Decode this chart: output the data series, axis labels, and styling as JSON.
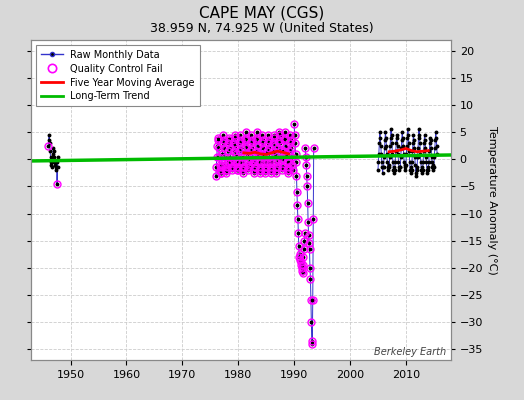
{
  "title": "CAPE MAY (CGS)",
  "subtitle": "38.959 N, 74.925 W (United States)",
  "ylabel": "Temperature Anomaly (°C)",
  "credit": "Berkeley Earth",
  "ylim": [
    -37,
    22
  ],
  "xlim": [
    1943,
    2018
  ],
  "yticks": [
    -35,
    -30,
    -25,
    -20,
    -15,
    -10,
    -5,
    0,
    5,
    10,
    15,
    20
  ],
  "xticks": [
    1950,
    1960,
    1970,
    1980,
    1990,
    2000,
    2010
  ],
  "fig_bg_color": "#d8d8d8",
  "plot_bg_color": "#ffffff",
  "raw_color": "#3333cc",
  "raw_dot_color": "#000000",
  "qc_color": "#ff00ff",
  "ma_color": "#ff0000",
  "trend_color": "#00bb00",
  "grid_color": "#cccccc",
  "title_fontsize": 11,
  "subtitle_fontsize": 9,
  "tick_fontsize": 8,
  "ylabel_fontsize": 8,
  "trend_x": [
    1943,
    2018
  ],
  "trend_y": [
    -0.3,
    0.8
  ],
  "seg1_years": [
    1946.0,
    1946.08,
    1946.17,
    1946.25,
    1946.33,
    1946.42,
    1946.5,
    1946.58,
    1946.67,
    1946.75,
    1946.83,
    1946.92,
    1947.0,
    1947.08,
    1947.17,
    1947.25,
    1947.33,
    1947.42,
    1947.5,
    1947.58,
    1947.67,
    1947.75
  ],
  "seg1_vals": [
    2.5,
    3.5,
    4.5,
    3.0,
    1.5,
    0.5,
    -0.5,
    -1.0,
    -1.5,
    -0.5,
    1.0,
    2.0,
    1.5,
    0.5,
    -0.5,
    -1.0,
    -2.0,
    -1.5,
    -0.5,
    -4.5,
    -1.5,
    0.5
  ],
  "seg1_qc_idx": [
    0,
    19
  ],
  "seg2_years": [
    1976.0,
    1976.08,
    1976.17,
    1976.25,
    1976.33,
    1976.42,
    1976.5,
    1976.58,
    1976.67,
    1976.75,
    1976.83,
    1976.92,
    1977.0,
    1977.08,
    1977.17,
    1977.25,
    1977.33,
    1977.42,
    1977.5,
    1977.58,
    1977.67,
    1977.75,
    1977.83,
    1977.92,
    1978.0,
    1978.08,
    1978.17,
    1978.25,
    1978.33,
    1978.42,
    1978.5,
    1978.58,
    1978.67,
    1978.75,
    1978.83,
    1978.92,
    1979.0,
    1979.08,
    1979.17,
    1979.25,
    1979.33,
    1979.42,
    1979.5,
    1979.58,
    1979.67,
    1979.75,
    1979.83,
    1979.92,
    1980.0,
    1980.08,
    1980.17,
    1980.25,
    1980.33,
    1980.42,
    1980.5,
    1980.58,
    1980.67,
    1980.75,
    1980.83,
    1980.92,
    1981.0,
    1981.08,
    1981.17,
    1981.25,
    1981.33,
    1981.42,
    1981.5,
    1981.58,
    1981.67,
    1981.75,
    1981.83,
    1981.92,
    1982.0,
    1982.08,
    1982.17,
    1982.25,
    1982.33,
    1982.42,
    1982.5,
    1982.58,
    1982.67,
    1982.75,
    1982.83,
    1982.92,
    1983.0,
    1983.08,
    1983.17,
    1983.25,
    1983.33,
    1983.42,
    1983.5,
    1983.58,
    1983.67,
    1983.75,
    1983.83,
    1983.92,
    1984.0,
    1984.08,
    1984.17,
    1984.25,
    1984.33,
    1984.42,
    1984.5,
    1984.58,
    1984.67,
    1984.75,
    1984.83,
    1984.92,
    1985.0,
    1985.08,
    1985.17,
    1985.25,
    1985.33,
    1985.42,
    1985.5,
    1985.58,
    1985.67,
    1985.75,
    1985.83,
    1985.92,
    1986.0,
    1986.08,
    1986.17,
    1986.25,
    1986.33,
    1986.42,
    1986.5,
    1986.58,
    1986.67,
    1986.75,
    1986.83,
    1986.92,
    1987.0,
    1987.08,
    1987.17,
    1987.25,
    1987.33,
    1987.42,
    1987.5,
    1987.58,
    1987.67,
    1987.75,
    1987.83,
    1987.92,
    1988.0,
    1988.08,
    1988.17,
    1988.25,
    1988.33,
    1988.42,
    1988.5,
    1988.58,
    1988.67,
    1988.75,
    1988.83,
    1988.92,
    1989.0,
    1989.08,
    1989.17,
    1989.25,
    1989.33,
    1989.42,
    1989.5,
    1989.58,
    1989.67,
    1989.75
  ],
  "seg2_vals": [
    -3.0,
    -1.5,
    0.5,
    2.5,
    4.0,
    3.5,
    2.0,
    0.5,
    -1.0,
    -2.0,
    -2.5,
    -1.5,
    -2.5,
    -1.0,
    1.0,
    3.0,
    4.5,
    3.5,
    2.0,
    0.5,
    -1.0,
    -2.0,
    -2.5,
    -1.5,
    -2.0,
    -0.5,
    1.5,
    3.0,
    4.0,
    3.5,
    2.0,
    0.5,
    -0.5,
    -1.5,
    -2.0,
    -1.5,
    -1.5,
    0.0,
    1.5,
    3.0,
    4.5,
    4.0,
    2.5,
    1.0,
    -0.5,
    -1.5,
    -2.0,
    -1.5,
    -2.0,
    -0.5,
    1.5,
    3.0,
    4.5,
    3.5,
    2.0,
    0.5,
    -0.5,
    -2.0,
    -2.5,
    -1.5,
    -1.5,
    0.5,
    2.0,
    3.5,
    5.0,
    4.0,
    2.5,
    1.0,
    -0.5,
    -1.5,
    -2.0,
    -1.0,
    -1.5,
    0.0,
    1.5,
    3.0,
    4.5,
    3.5,
    2.0,
    0.5,
    -0.5,
    -2.0,
    -2.5,
    -1.5,
    -1.5,
    0.0,
    1.5,
    3.5,
    5.0,
    4.0,
    2.5,
    1.0,
    -0.5,
    -2.0,
    -2.5,
    -1.5,
    -2.0,
    -0.5,
    1.0,
    3.0,
    4.5,
    3.5,
    2.0,
    0.5,
    -0.5,
    -2.0,
    -2.5,
    -1.5,
    -2.0,
    -0.5,
    1.5,
    3.0,
    4.5,
    3.5,
    2.0,
    0.5,
    -0.5,
    -2.0,
    -2.5,
    -1.5,
    -2.0,
    -0.5,
    1.5,
    3.0,
    4.5,
    4.0,
    2.5,
    1.0,
    -0.5,
    -2.0,
    -2.5,
    -1.5,
    -1.5,
    0.0,
    2.0,
    3.5,
    5.0,
    4.5,
    3.0,
    1.5,
    0.0,
    -1.5,
    -2.0,
    -1.5,
    -1.5,
    0.0,
    1.5,
    3.5,
    5.0,
    4.0,
    2.5,
    1.0,
    -0.5,
    -2.0,
    -2.5,
    -1.5,
    -2.0,
    -0.5,
    1.5,
    3.0,
    4.5,
    3.5,
    2.0,
    0.5,
    -1.0,
    -2.0
  ],
  "seg3a_years": [
    1990.0,
    1990.08,
    1990.17,
    1990.25,
    1990.33,
    1990.42,
    1990.5,
    1990.58,
    1990.67,
    1990.75,
    1990.83,
    1990.92,
    1991.0,
    1991.08,
    1991.17,
    1991.25,
    1991.33,
    1991.42,
    1991.5,
    1991.58,
    1991.67,
    1991.75,
    1991.83,
    1991.92
  ],
  "seg3a_vals": [
    6.5,
    4.5,
    3.0,
    1.0,
    -0.5,
    -3.0,
    -6.0,
    -8.5,
    -11.0,
    -13.5,
    -16.0,
    -18.0,
    -17.5,
    -18.5,
    -19.0,
    -19.5,
    -20.0,
    -20.5,
    -21.0,
    -19.5,
    -18.0,
    -16.5,
    -15.0,
    -13.5
  ],
  "seg3b_years": [
    1992.0,
    1992.08,
    1992.17,
    1992.25,
    1992.33,
    1992.42,
    1992.5,
    1992.58,
    1992.67,
    1992.75,
    1992.83,
    1992.92,
    1993.0,
    1993.08,
    1993.17,
    1993.25,
    1993.33,
    1993.42,
    1993.5
  ],
  "seg3b_vals": [
    2.0,
    0.5,
    -1.0,
    -3.0,
    -5.0,
    -8.0,
    -11.5,
    -14.0,
    -15.5,
    -16.5,
    -20.0,
    -22.0,
    -26.0,
    -30.0,
    -33.5,
    -34.0,
    -26.0,
    -11.0,
    2.0
  ],
  "seg4_years": [
    2005.0,
    2005.08,
    2005.17,
    2005.25,
    2005.33,
    2005.42,
    2005.5,
    2005.58,
    2005.67,
    2005.75,
    2005.83,
    2005.92,
    2006.0,
    2006.08,
    2006.17,
    2006.25,
    2006.33,
    2006.42,
    2006.5,
    2006.58,
    2006.67,
    2006.75,
    2006.83,
    2006.92,
    2007.0,
    2007.08,
    2007.17,
    2007.25,
    2007.33,
    2007.42,
    2007.5,
    2007.58,
    2007.67,
    2007.75,
    2007.83,
    2007.92,
    2008.0,
    2008.08,
    2008.17,
    2008.25,
    2008.33,
    2008.42,
    2008.5,
    2008.58,
    2008.67,
    2008.75,
    2008.83,
    2008.92,
    2009.0,
    2009.08,
    2009.17,
    2009.25,
    2009.33,
    2009.42,
    2009.5,
    2009.58,
    2009.67,
    2009.75,
    2009.83,
    2009.92,
    2010.0,
    2010.08,
    2010.17,
    2010.25,
    2010.33,
    2010.42,
    2010.5,
    2010.58,
    2010.67,
    2010.75,
    2010.83,
    2010.92,
    2011.0,
    2011.08,
    2011.17,
    2011.25,
    2011.33,
    2011.42,
    2011.5,
    2011.58,
    2011.67,
    2011.75,
    2011.83,
    2011.92,
    2012.0,
    2012.08,
    2012.17,
    2012.25,
    2012.33,
    2012.42,
    2012.5,
    2012.58,
    2012.67,
    2012.75,
    2012.83,
    2012.92,
    2013.0,
    2013.08,
    2013.17,
    2013.25,
    2013.33,
    2013.42,
    2013.5,
    2013.58,
    2013.67,
    2013.75,
    2013.83,
    2013.92,
    2014.0,
    2014.08,
    2014.17,
    2014.25,
    2014.33,
    2014.42,
    2014.5,
    2014.58,
    2014.67,
    2014.75,
    2014.83,
    2014.92,
    2015.0,
    2015.08,
    2015.17,
    2015.25,
    2015.33,
    2015.42,
    2015.5,
    2015.58
  ],
  "seg4_vals": [
    -2.0,
    -0.5,
    1.0,
    3.0,
    5.0,
    4.0,
    2.5,
    1.0,
    -0.5,
    -1.5,
    -2.5,
    -1.5,
    -1.5,
    0.5,
    2.0,
    3.5,
    5.0,
    4.0,
    2.5,
    1.0,
    -0.5,
    -1.5,
    -2.0,
    -1.0,
    -1.5,
    0.5,
    2.5,
    4.0,
    5.5,
    4.5,
    3.0,
    1.0,
    -0.5,
    -2.0,
    -2.5,
    -1.5,
    -2.0,
    -0.5,
    1.5,
    3.0,
    4.5,
    4.0,
    2.5,
    1.0,
    -0.5,
    -1.5,
    -2.0,
    -1.5,
    -1.5,
    0.5,
    2.0,
    3.5,
    5.0,
    4.0,
    2.5,
    1.0,
    -0.5,
    -1.5,
    -2.0,
    -1.0,
    -1.0,
    1.0,
    2.5,
    4.0,
    5.5,
    4.5,
    3.0,
    1.5,
    -0.5,
    -2.0,
    -2.5,
    -1.5,
    -2.0,
    -0.5,
    1.5,
    3.0,
    4.5,
    3.5,
    2.0,
    0.5,
    -1.0,
    -2.5,
    -3.0,
    -2.0,
    -1.5,
    0.5,
    2.0,
    4.0,
    5.5,
    4.5,
    3.0,
    1.0,
    -0.5,
    -2.0,
    -2.5,
    -1.5,
    -2.0,
    -0.5,
    1.5,
    3.0,
    4.5,
    3.5,
    2.0,
    0.5,
    -0.5,
    -2.0,
    -2.5,
    -1.5,
    -2.0,
    -0.5,
    1.5,
    3.0,
    4.0,
    3.5,
    2.0,
    0.5,
    -0.5,
    -1.5,
    -2.0,
    -1.0,
    -1.5,
    0.5,
    2.0,
    3.5,
    5.0,
    4.0,
    2.5,
    1.0
  ],
  "ma1_x": [
    1981.0,
    1982.0,
    1983.0,
    1984.0,
    1985.0,
    1986.0,
    1987.0,
    1988.0,
    1989.0
  ],
  "ma1_y": [
    1.2,
    1.1,
    1.3,
    1.0,
    0.9,
    1.2,
    1.5,
    1.3,
    1.0
  ],
  "ma2_x": [
    2007.0,
    2008.0,
    2009.0,
    2010.0,
    2011.0,
    2012.0,
    2013.0,
    2014.0
  ],
  "ma2_y": [
    1.4,
    1.5,
    1.7,
    2.0,
    1.6,
    1.4,
    1.5,
    1.6
  ]
}
